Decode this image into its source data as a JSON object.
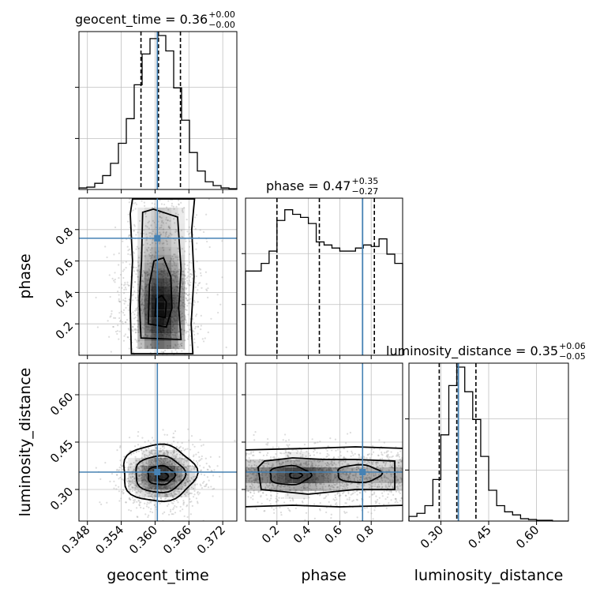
{
  "chart_data": {
    "type": "corner",
    "parameters": [
      "geocent_time",
      "phase",
      "luminosity_distance"
    ],
    "truths": {
      "geocent_time": 0.3604,
      "phase": 0.745,
      "luminosity_distance": 0.355
    },
    "colors": {
      "truth": "#4682b4",
      "hist": "#000000",
      "grid": "#c0c0c0",
      "points": "#9a9a9a"
    },
    "titles": [
      {
        "param": "geocent_time",
        "text": "geocent_time = 0.36",
        "sup": "+0.00",
        "sub": "−0.00"
      },
      {
        "param": "phase",
        "text": "phase = 0.47",
        "sup": "+0.35",
        "sub": "−0.27"
      },
      {
        "param": "luminosity_distance",
        "text": "luminosity_distance = 0.35",
        "sup": "+0.06",
        "sub": "−0.05"
      }
    ],
    "axes": {
      "geocent_time": {
        "range": [
          0.3465,
          0.3745
        ],
        "ticks": [
          0.348,
          0.354,
          0.36,
          0.366,
          0.372
        ],
        "tick_labels": [
          "0.348",
          "0.354",
          "0.360",
          "0.366",
          "0.372"
        ]
      },
      "phase": {
        "range": [
          0.0,
          1.0
        ],
        "ticks": [
          0.2,
          0.4,
          0.6,
          0.8
        ],
        "tick_labels": [
          "0.2",
          "0.4",
          "0.6",
          "0.8"
        ]
      },
      "luminosity_distance": {
        "range": [
          0.2,
          0.7
        ],
        "ticks": [
          0.3,
          0.45,
          0.6
        ],
        "tick_labels": [
          "0.30",
          "0.45",
          "0.60"
        ]
      }
    },
    "quantile_lines": {
      "geocent_time": [
        0.3575,
        0.3606,
        0.3645
      ],
      "phase": [
        0.2,
        0.47,
        0.82
      ],
      "luminosity_distance": [
        0.295,
        0.35,
        0.41
      ]
    },
    "histograms": {
      "geocent_time": {
        "edges": [
          0.3465,
          0.3479,
          0.3493,
          0.3507,
          0.3521,
          0.3535,
          0.3549,
          0.3563,
          0.3577,
          0.3591,
          0.3605,
          0.3619,
          0.3633,
          0.3647,
          0.3661,
          0.3675,
          0.3689,
          0.3703,
          0.3717,
          0.3731,
          0.3745
        ],
        "values": [
          0.01,
          0.015,
          0.04,
          0.09,
          0.17,
          0.3,
          0.46,
          0.68,
          0.88,
          0.98,
          1.0,
          0.9,
          0.66,
          0.45,
          0.24,
          0.12,
          0.05,
          0.025,
          0.01,
          0.005
        ]
      },
      "phase": {
        "edges": [
          0.0,
          0.05,
          0.1,
          0.15,
          0.2,
          0.25,
          0.3,
          0.35,
          0.4,
          0.45,
          0.5,
          0.55,
          0.6,
          0.65,
          0.7,
          0.75,
          0.8,
          0.85,
          0.9,
          0.95,
          1.0
        ],
        "values": [
          0.55,
          0.55,
          0.6,
          0.68,
          0.88,
          0.95,
          0.92,
          0.9,
          0.86,
          0.74,
          0.72,
          0.7,
          0.68,
          0.68,
          0.7,
          0.72,
          0.71,
          0.76,
          0.66,
          0.6
        ]
      },
      "luminosity_distance": {
        "edges": [
          0.2,
          0.225,
          0.25,
          0.275,
          0.3,
          0.325,
          0.35,
          0.375,
          0.4,
          0.425,
          0.45,
          0.475,
          0.5,
          0.525,
          0.55,
          0.575,
          0.6,
          0.625,
          0.65,
          0.675,
          0.7
        ],
        "values": [
          0.03,
          0.05,
          0.1,
          0.27,
          0.56,
          0.88,
          1.0,
          0.84,
          0.66,
          0.42,
          0.2,
          0.1,
          0.06,
          0.04,
          0.015,
          0.01,
          0.005,
          0.005,
          0.0,
          0.0
        ]
      }
    },
    "density_2d": [
      {
        "x": "geocent_time",
        "y": "phase",
        "x_center": 0.3611,
        "y_center": 0.3,
        "x_sigma": 0.0038
      },
      {
        "x": "geocent_time",
        "y": "luminosity_distance",
        "x_center": 0.3611,
        "y_center": 0.345,
        "x_sigma": 0.0038,
        "y_sigma": 0.045
      },
      {
        "x": "phase",
        "y": "luminosity_distance",
        "y_center": 0.345,
        "y_sigma": 0.04
      }
    ],
    "grid": true
  }
}
